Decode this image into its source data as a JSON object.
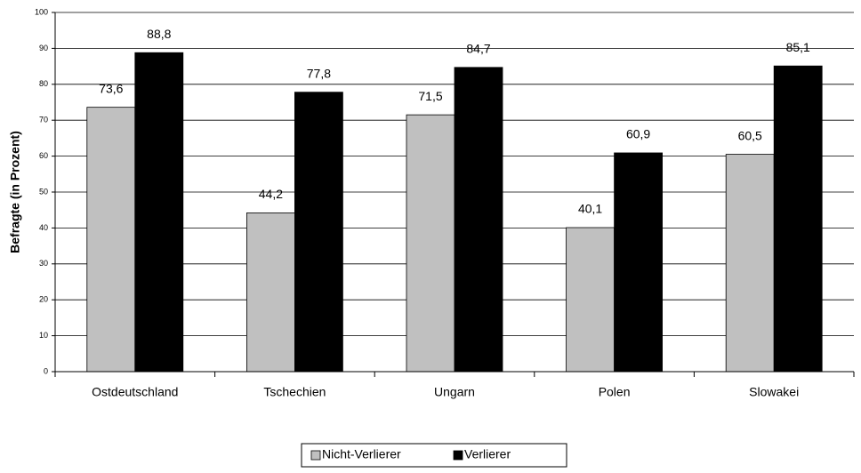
{
  "chart_data": {
    "type": "bar",
    "y_label": "Befragte (in Prozent)",
    "categories": [
      "Ostdeutschland",
      "Tschechien",
      "Ungarn",
      "Polen",
      "Slowakei"
    ],
    "series": [
      {
        "name": "Nicht-Verlierer",
        "color": "#c0c0c0",
        "values": [
          73.6,
          44.2,
          71.5,
          40.1,
          60.5
        ],
        "value_labels": [
          "73,6",
          "44,2",
          "71,5",
          "40,1",
          "60,5"
        ]
      },
      {
        "name": "Verlierer",
        "color": "#000000",
        "values": [
          88.8,
          77.8,
          84.7,
          60.9,
          85.1
        ],
        "value_labels": [
          "88,8",
          "77,8",
          "84,7",
          "60,9",
          "85,1"
        ]
      }
    ],
    "ylim": [
      0,
      100
    ],
    "yticks": [
      0,
      10,
      20,
      30,
      40,
      50,
      60,
      70,
      80,
      90,
      100
    ],
    "grid": true,
    "legend": "bottom"
  }
}
